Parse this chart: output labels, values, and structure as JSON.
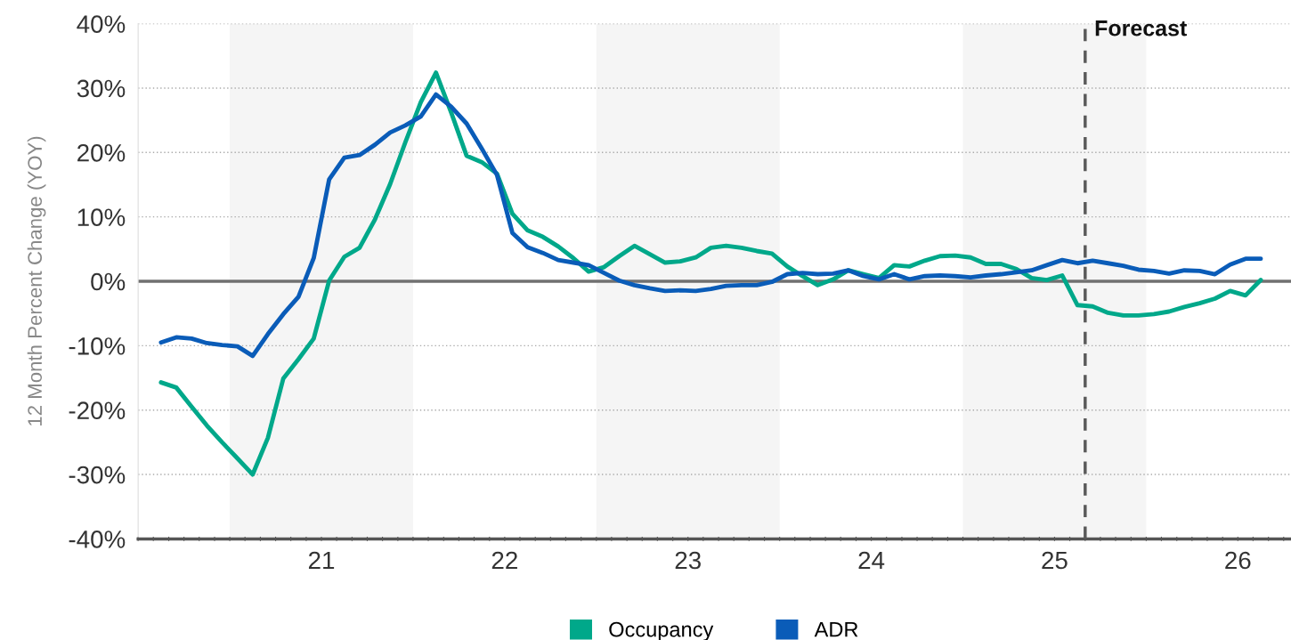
{
  "chart_data": {
    "type": "line",
    "ylabel": "12 Month Percent Change (YOY)",
    "x": [
      20.125,
      20.208,
      20.292,
      20.375,
      20.458,
      20.542,
      20.625,
      20.708,
      20.792,
      20.875,
      20.958,
      21.042,
      21.125,
      21.208,
      21.292,
      21.375,
      21.458,
      21.542,
      21.625,
      21.708,
      21.792,
      21.875,
      21.958,
      22.042,
      22.125,
      22.208,
      22.292,
      22.375,
      22.458,
      22.542,
      22.625,
      22.708,
      22.792,
      22.875,
      22.958,
      23.042,
      23.125,
      23.208,
      23.292,
      23.375,
      23.458,
      23.542,
      23.625,
      23.708,
      23.792,
      23.875,
      23.958,
      24.042,
      24.125,
      24.208,
      24.292,
      24.375,
      24.458,
      24.542,
      24.625,
      24.708,
      24.792,
      24.875,
      24.958,
      25.042,
      25.125,
      25.208,
      25.292,
      25.375,
      25.458,
      25.542,
      25.625,
      25.708,
      25.792,
      25.875,
      25.958,
      26.042,
      26.125
    ],
    "series": [
      {
        "name": "Occupancy",
        "color": "#00a88a",
        "values": [
          -15.7,
          -16.5,
          -19.5,
          -22.4,
          -25.0,
          -27.5,
          -30.0,
          -24.3,
          -15.1,
          -12.1,
          -8.9,
          0.1,
          3.8,
          5.2,
          9.6,
          15.1,
          21.6,
          27.8,
          32.4,
          26.2,
          19.5,
          18.5,
          16.7,
          10.5,
          7.9,
          6.9,
          5.4,
          3.6,
          1.5,
          2.2,
          3.9,
          5.5,
          4.2,
          2.9,
          3.1,
          3.7,
          5.2,
          5.5,
          5.2,
          4.7,
          4.3,
          2.3,
          0.8,
          -0.6,
          0.3,
          1.7,
          1.1,
          0.5,
          2.5,
          2.3,
          3.2,
          3.9,
          4.0,
          3.7,
          2.7,
          2.7,
          1.9,
          0.5,
          0.2,
          0.9,
          -3.7,
          -3.9,
          -4.9,
          -5.3,
          -5.3,
          -5.1,
          -4.7,
          -4.0,
          -3.4,
          -2.7,
          -1.5,
          -2.2,
          0.2
        ]
      },
      {
        "name": "ADR",
        "color": "#0a5cb8",
        "values": [
          -9.5,
          -8.7,
          -8.9,
          -9.6,
          -9.9,
          -10.1,
          -11.6,
          -8.2,
          -5.1,
          -2.4,
          3.6,
          15.8,
          19.2,
          19.6,
          21.2,
          23.1,
          24.2,
          25.6,
          29.0,
          27.1,
          24.5,
          20.6,
          16.5,
          7.5,
          5.3,
          4.4,
          3.3,
          2.9,
          2.5,
          1.3,
          0.1,
          -0.6,
          -1.1,
          -1.5,
          -1.4,
          -1.5,
          -1.2,
          -0.7,
          -0.6,
          -0.6,
          -0.1,
          1.1,
          1.3,
          1.1,
          1.2,
          1.7,
          0.8,
          0.3,
          1.1,
          0.3,
          0.8,
          0.9,
          0.8,
          0.6,
          0.9,
          1.1,
          1.4,
          1.7,
          2.5,
          3.3,
          2.8,
          3.2,
          2.8,
          2.4,
          1.8,
          1.6,
          1.2,
          1.7,
          1.6,
          1.1,
          2.6,
          3.5,
          3.5
        ]
      }
    ],
    "xlim": [
      20.0,
      26.29
    ],
    "xticks": [
      {
        "value": 20,
        "label": null
      },
      {
        "value": 20.083,
        "label": null
      },
      {
        "value": 20.167,
        "label": null
      },
      {
        "value": 20.25,
        "label": null
      },
      {
        "value": 20.333,
        "label": null
      },
      {
        "value": 20.417,
        "label": null
      },
      {
        "value": 20.5,
        "label": null
      },
      {
        "value": 20.583,
        "label": null
      },
      {
        "value": 20.667,
        "label": null
      },
      {
        "value": 20.75,
        "label": null
      },
      {
        "value": 20.833,
        "label": null
      },
      {
        "value": 20.917,
        "label": null
      },
      21,
      {
        "value": 21.083,
        "label": null
      },
      {
        "value": 21.167,
        "label": null
      },
      {
        "value": 21.25,
        "label": null
      },
      {
        "value": 21.333,
        "label": null
      },
      {
        "value": 21.417,
        "label": null
      },
      {
        "value": 21.5,
        "label": null
      },
      {
        "value": 21.583,
        "label": null
      },
      {
        "value": 21.667,
        "label": null
      },
      {
        "value": 21.75,
        "label": null
      },
      {
        "value": 21.833,
        "label": null
      },
      {
        "value": 21.917,
        "label": null
      },
      22,
      {
        "value": 22.083,
        "label": null
      },
      {
        "value": 22.167,
        "label": null
      },
      {
        "value": 22.25,
        "label": null
      },
      {
        "value": 22.333,
        "label": null
      },
      {
        "value": 22.417,
        "label": null
      },
      {
        "value": 22.5,
        "label": null
      },
      {
        "value": 22.583,
        "label": null
      },
      {
        "value": 22.667,
        "label": null
      },
      {
        "value": 22.75,
        "label": null
      },
      {
        "value": 22.833,
        "label": null
      },
      {
        "value": 22.917,
        "label": null
      },
      23,
      {
        "value": 23.083,
        "label": null
      },
      {
        "value": 23.167,
        "label": null
      },
      {
        "value": 23.25,
        "label": null
      },
      {
        "value": 23.333,
        "label": null
      },
      {
        "value": 23.417,
        "label": null
      },
      {
        "value": 23.5,
        "label": null
      },
      {
        "value": 23.583,
        "label": null
      },
      {
        "value": 23.667,
        "label": null
      },
      {
        "value": 23.75,
        "label": null
      },
      {
        "value": 23.833,
        "label": null
      },
      {
        "value": 23.917,
        "label": null
      },
      24,
      {
        "value": 24.083,
        "label": null
      },
      {
        "value": 24.167,
        "label": null
      },
      {
        "value": 24.25,
        "label": null
      },
      {
        "value": 24.333,
        "label": null
      },
      {
        "value": 24.417,
        "label": null
      },
      {
        "value": 24.5,
        "label": null
      },
      {
        "value": 24.583,
        "label": null
      },
      {
        "value": 24.667,
        "label": null
      },
      {
        "value": 24.75,
        "label": null
      },
      {
        "value": 24.833,
        "label": null
      },
      {
        "value": 24.917,
        "label": null
      },
      25,
      {
        "value": 25.083,
        "label": null
      },
      {
        "value": 25.167,
        "label": null
      },
      {
        "value": 25.25,
        "label": null
      },
      {
        "value": 25.333,
        "label": null
      },
      {
        "value": 25.417,
        "label": null
      },
      {
        "value": 25.5,
        "label": null
      },
      {
        "value": 25.583,
        "label": null
      },
      {
        "value": 25.667,
        "label": null
      },
      {
        "value": 25.75,
        "label": null
      },
      {
        "value": 25.833,
        "label": null
      },
      {
        "value": 25.917,
        "label": null
      },
      26,
      {
        "value": 26.083,
        "label": null
      },
      {
        "value": 26.167,
        "label": null
      },
      {
        "value": 26.25,
        "label": null
      }
    ],
    "ylim": [
      -40,
      40
    ],
    "yticks": [
      {
        "value": -40,
        "label": "-40%"
      },
      {
        "value": -30,
        "label": "-30%"
      },
      {
        "value": -20,
        "label": "-20%"
      },
      {
        "value": -10,
        "label": "-10%"
      },
      {
        "value": 0,
        "label": "0%"
      },
      {
        "value": 10,
        "label": "10%"
      },
      {
        "value": 20,
        "label": "20%"
      },
      {
        "value": 30,
        "label": "30%"
      },
      {
        "value": 40,
        "label": "40%"
      }
    ],
    "bands": [
      {
        "axis": "x",
        "from": 20.5,
        "to": 21.5,
        "color": "#f5f5f5"
      },
      {
        "axis": "x",
        "from": 22.5,
        "to": 23.5,
        "color": "#f5f5f5"
      },
      {
        "axis": "x",
        "from": 24.5,
        "to": 25.5,
        "color": "#f5f5f5"
      }
    ],
    "ref_lines": [
      {
        "axis": "y",
        "value": 0,
        "color": "#707070",
        "line_style": "solid"
      },
      {
        "axis": "x",
        "value": 25.167,
        "label": "Forecast",
        "color": "#5a5a5a",
        "line_style": "dashed"
      }
    ],
    "grid": "y",
    "legend": "bottom",
    "marker": "none",
    "line_style": "solid"
  }
}
